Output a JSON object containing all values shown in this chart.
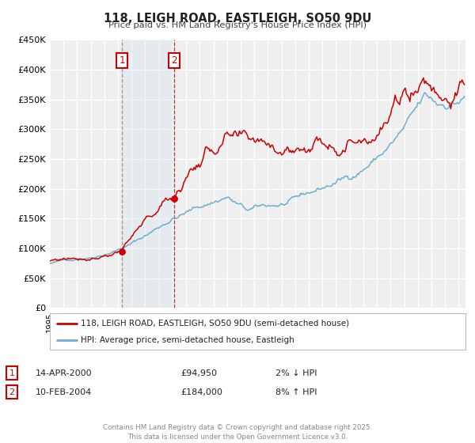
{
  "title": "118, LEIGH ROAD, EASTLEIGH, SO50 9DU",
  "subtitle": "Price paid vs. HM Land Registry's House Price Index (HPI)",
  "ylim": [
    0,
    450000
  ],
  "yticks": [
    0,
    50000,
    100000,
    150000,
    200000,
    250000,
    300000,
    350000,
    400000,
    450000
  ],
  "ytick_labels": [
    "£0",
    "£50K",
    "£100K",
    "£150K",
    "£200K",
    "£250K",
    "£300K",
    "£350K",
    "£400K",
    "£450K"
  ],
  "hpi_color": "#6baed6",
  "price_color": "#cc0000",
  "background_color": "#ffffff",
  "plot_bg_color": "#efefef",
  "grid_color": "#ffffff",
  "sale1_date": "14-APR-2000",
  "sale1_price": 94950,
  "sale1_pct": "2%",
  "sale1_direction": "↓",
  "sale2_date": "10-FEB-2004",
  "sale2_price": 184000,
  "sale2_pct": "8%",
  "sale2_direction": "↑",
  "legend_label1": "118, LEIGH ROAD, EASTLEIGH, SO50 9DU (semi-detached house)",
  "legend_label2": "HPI: Average price, semi-detached house, Eastleigh",
  "footer": "Contains HM Land Registry data © Crown copyright and database right 2025.\nThis data is licensed under the Open Government Licence v3.0.",
  "vline1_x": 2000.286,
  "vline2_x": 2004.118,
  "shade_start": 2000.286,
  "shade_end": 2004.118,
  "xmin": 1995,
  "xmax": 2025.5
}
